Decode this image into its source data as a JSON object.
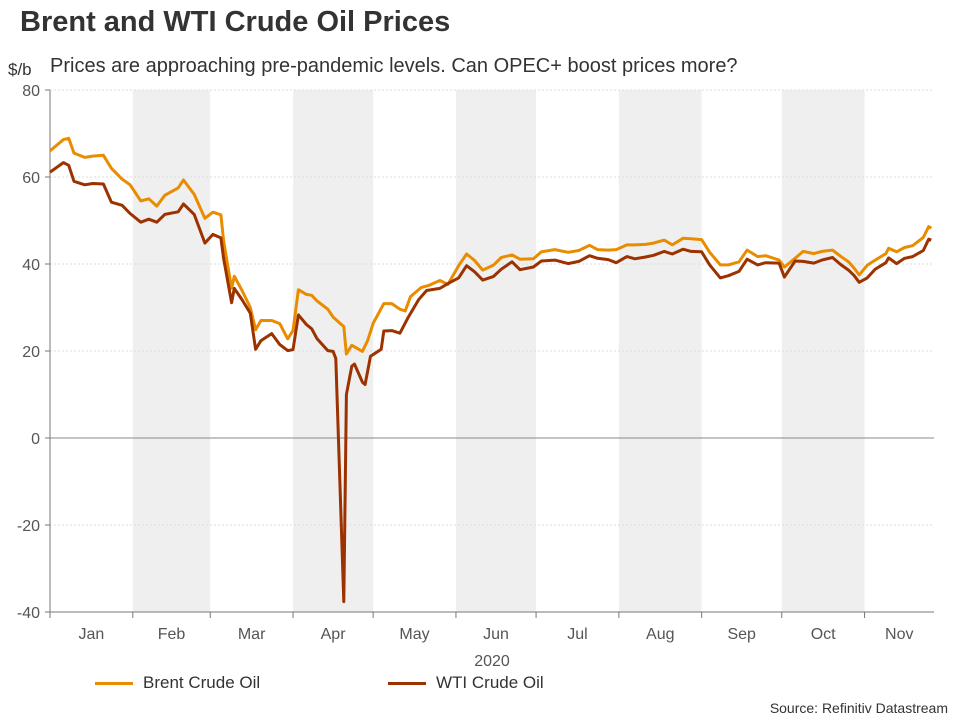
{
  "title": "Brent and WTI Crude Oil Prices",
  "subtitle": "Prices are approaching pre-pandemic levels. Can OPEC+ boost prices more?",
  "source": "Source: Refinitiv Datastream",
  "chart_data": {
    "type": "line",
    "ylabel": "$/b",
    "xlabel": "2020",
    "ylim": [
      -40,
      80
    ],
    "yticks": [
      -40,
      -20,
      0,
      20,
      40,
      60,
      80
    ],
    "xlim": [
      "2020-01-01",
      "2020-11-27"
    ],
    "xticks": [
      "Jan",
      "Feb",
      "Mar",
      "Apr",
      "May",
      "Jun",
      "Jul",
      "Aug",
      "Sep",
      "Oct",
      "Nov"
    ],
    "shaded_months": [
      "Feb",
      "Apr",
      "Jun",
      "Aug",
      "Oct"
    ],
    "grid": true,
    "legend": "bottom",
    "series": [
      {
        "name": "Brent Crude Oil",
        "color": "#ea8c00",
        "points": [
          [
            "2020-01-01",
            66
          ],
          [
            "2020-01-06",
            68.6
          ],
          [
            "2020-01-08",
            68.9
          ],
          [
            "2020-01-10",
            65.5
          ],
          [
            "2020-01-14",
            64.5
          ],
          [
            "2020-01-17",
            64.8
          ],
          [
            "2020-01-21",
            65
          ],
          [
            "2020-01-24",
            62
          ],
          [
            "2020-01-28",
            59.5
          ],
          [
            "2020-01-31",
            58.2
          ],
          [
            "2020-02-04",
            54.5
          ],
          [
            "2020-02-07",
            55
          ],
          [
            "2020-02-10",
            53.3
          ],
          [
            "2020-02-13",
            55.8
          ],
          [
            "2020-02-18",
            57.5
          ],
          [
            "2020-02-20",
            59.3
          ],
          [
            "2020-02-24",
            56
          ],
          [
            "2020-02-28",
            50.5
          ],
          [
            "2020-03-02",
            51.9
          ],
          [
            "2020-03-05",
            51.3
          ],
          [
            "2020-03-06",
            45.3
          ],
          [
            "2020-03-09",
            34.4
          ],
          [
            "2020-03-10",
            37.2
          ],
          [
            "2020-03-13",
            33.8
          ],
          [
            "2020-03-16",
            30
          ],
          [
            "2020-03-18",
            24.9
          ],
          [
            "2020-03-20",
            27
          ],
          [
            "2020-03-24",
            27
          ],
          [
            "2020-03-27",
            26.3
          ],
          [
            "2020-03-30",
            22.8
          ],
          [
            "2020-04-01",
            24.7
          ],
          [
            "2020-04-03",
            34.1
          ],
          [
            "2020-04-06",
            33
          ],
          [
            "2020-04-08",
            32.8
          ],
          [
            "2020-04-10",
            31.5
          ],
          [
            "2020-04-14",
            29.6
          ],
          [
            "2020-04-16",
            27.8
          ],
          [
            "2020-04-20",
            25.6
          ],
          [
            "2020-04-21",
            19.3
          ],
          [
            "2020-04-23",
            21.3
          ],
          [
            "2020-04-27",
            19.9
          ],
          [
            "2020-04-29",
            22.5
          ],
          [
            "2020-05-01",
            26.4
          ],
          [
            "2020-05-05",
            30.9
          ],
          [
            "2020-05-08",
            30.9
          ],
          [
            "2020-05-11",
            29.6
          ],
          [
            "2020-05-13",
            29.2
          ],
          [
            "2020-05-15",
            32.5
          ],
          [
            "2020-05-19",
            34.6
          ],
          [
            "2020-05-22",
            35.1
          ],
          [
            "2020-05-26",
            36.2
          ],
          [
            "2020-05-29",
            35.3
          ],
          [
            "2020-06-02",
            39.6
          ],
          [
            "2020-06-05",
            42.3
          ],
          [
            "2020-06-08",
            40.8
          ],
          [
            "2020-06-11",
            38.6
          ],
          [
            "2020-06-15",
            39.7
          ],
          [
            "2020-06-18",
            41.5
          ],
          [
            "2020-06-22",
            42.1
          ],
          [
            "2020-06-25",
            41.1
          ],
          [
            "2020-06-30",
            41.2
          ],
          [
            "2020-07-03",
            42.8
          ],
          [
            "2020-07-08",
            43.3
          ],
          [
            "2020-07-13",
            42.7
          ],
          [
            "2020-07-17",
            43.1
          ],
          [
            "2020-07-21",
            44.3
          ],
          [
            "2020-07-24",
            43.3
          ],
          [
            "2020-07-28",
            43.2
          ],
          [
            "2020-07-31",
            43.3
          ],
          [
            "2020-08-04",
            44.4
          ],
          [
            "2020-08-07",
            44.4
          ],
          [
            "2020-08-11",
            44.5
          ],
          [
            "2020-08-14",
            44.8
          ],
          [
            "2020-08-18",
            45.5
          ],
          [
            "2020-08-21",
            44.4
          ],
          [
            "2020-08-25",
            45.9
          ],
          [
            "2020-08-28",
            45.8
          ],
          [
            "2020-09-01",
            45.6
          ],
          [
            "2020-09-04",
            42.7
          ],
          [
            "2020-09-08",
            39.8
          ],
          [
            "2020-09-11",
            39.8
          ],
          [
            "2020-09-15",
            40.5
          ],
          [
            "2020-09-18",
            43.2
          ],
          [
            "2020-09-22",
            41.7
          ],
          [
            "2020-09-25",
            41.9
          ],
          [
            "2020-09-30",
            40.9
          ],
          [
            "2020-10-02",
            39.3
          ],
          [
            "2020-10-06",
            41.3
          ],
          [
            "2020-10-09",
            42.9
          ],
          [
            "2020-10-13",
            42.4
          ],
          [
            "2020-10-16",
            42.9
          ],
          [
            "2020-10-20",
            43.2
          ],
          [
            "2020-10-23",
            41.8
          ],
          [
            "2020-10-26",
            40.5
          ],
          [
            "2020-10-28",
            39.1
          ],
          [
            "2020-10-30",
            37.5
          ],
          [
            "2020-11-02",
            39.7
          ],
          [
            "2020-11-05",
            40.9
          ],
          [
            "2020-11-09",
            42.4
          ],
          [
            "2020-11-10",
            43.6
          ],
          [
            "2020-11-13",
            42.8
          ],
          [
            "2020-11-16",
            43.8
          ],
          [
            "2020-11-19",
            44.2
          ],
          [
            "2020-11-23",
            46.1
          ],
          [
            "2020-11-25",
            48.6
          ],
          [
            "2020-11-26",
            48.2
          ]
        ]
      },
      {
        "name": "WTI Crude Oil",
        "color": "#9b3200",
        "points": [
          [
            "2020-01-01",
            61.1
          ],
          [
            "2020-01-06",
            63.3
          ],
          [
            "2020-01-08",
            62.7
          ],
          [
            "2020-01-10",
            59
          ],
          [
            "2020-01-14",
            58.2
          ],
          [
            "2020-01-17",
            58.5
          ],
          [
            "2020-01-21",
            58.4
          ],
          [
            "2020-01-24",
            54.2
          ],
          [
            "2020-01-28",
            53.5
          ],
          [
            "2020-01-31",
            51.6
          ],
          [
            "2020-02-04",
            49.6
          ],
          [
            "2020-02-07",
            50.3
          ],
          [
            "2020-02-10",
            49.6
          ],
          [
            "2020-02-13",
            51.4
          ],
          [
            "2020-02-18",
            52
          ],
          [
            "2020-02-20",
            53.8
          ],
          [
            "2020-02-24",
            51.4
          ],
          [
            "2020-02-28",
            44.8
          ],
          [
            "2020-03-02",
            46.8
          ],
          [
            "2020-03-05",
            46
          ],
          [
            "2020-03-06",
            41.3
          ],
          [
            "2020-03-09",
            31.1
          ],
          [
            "2020-03-10",
            34.4
          ],
          [
            "2020-03-13",
            31.7
          ],
          [
            "2020-03-16",
            28.7
          ],
          [
            "2020-03-18",
            20.4
          ],
          [
            "2020-03-20",
            22.4
          ],
          [
            "2020-03-24",
            24
          ],
          [
            "2020-03-27",
            21.5
          ],
          [
            "2020-03-30",
            20.1
          ],
          [
            "2020-04-01",
            20.3
          ],
          [
            "2020-04-03",
            28.3
          ],
          [
            "2020-04-06",
            26.1
          ],
          [
            "2020-04-08",
            25.1
          ],
          [
            "2020-04-10",
            22.8
          ],
          [
            "2020-04-14",
            20.1
          ],
          [
            "2020-04-16",
            19.9
          ],
          [
            "2020-04-17",
            18.3
          ],
          [
            "2020-04-20",
            -37.6
          ],
          [
            "2020-04-21",
            10
          ],
          [
            "2020-04-23",
            16.5
          ],
          [
            "2020-04-24",
            17
          ],
          [
            "2020-04-27",
            12.8
          ],
          [
            "2020-04-28",
            12.3
          ],
          [
            "2020-04-30",
            18.8
          ],
          [
            "2020-05-04",
            20.4
          ],
          [
            "2020-05-05",
            24.6
          ],
          [
            "2020-05-08",
            24.7
          ],
          [
            "2020-05-11",
            24.1
          ],
          [
            "2020-05-14",
            27.6
          ],
          [
            "2020-05-18",
            31.8
          ],
          [
            "2020-05-21",
            33.9
          ],
          [
            "2020-05-26",
            34.4
          ],
          [
            "2020-05-29",
            35.5
          ],
          [
            "2020-06-02",
            36.8
          ],
          [
            "2020-06-05",
            39.6
          ],
          [
            "2020-06-08",
            38.2
          ],
          [
            "2020-06-11",
            36.3
          ],
          [
            "2020-06-15",
            37.1
          ],
          [
            "2020-06-18",
            38.8
          ],
          [
            "2020-06-22",
            40.5
          ],
          [
            "2020-06-25",
            38.7
          ],
          [
            "2020-06-30",
            39.3
          ],
          [
            "2020-07-03",
            40.7
          ],
          [
            "2020-07-08",
            40.9
          ],
          [
            "2020-07-13",
            40.1
          ],
          [
            "2020-07-17",
            40.6
          ],
          [
            "2020-07-21",
            41.9
          ],
          [
            "2020-07-24",
            41.3
          ],
          [
            "2020-07-28",
            41
          ],
          [
            "2020-07-31",
            40.3
          ],
          [
            "2020-08-04",
            41.7
          ],
          [
            "2020-08-07",
            41.2
          ],
          [
            "2020-08-11",
            41.6
          ],
          [
            "2020-08-14",
            42
          ],
          [
            "2020-08-18",
            42.9
          ],
          [
            "2020-08-21",
            42.3
          ],
          [
            "2020-08-25",
            43.4
          ],
          [
            "2020-08-28",
            42.9
          ],
          [
            "2020-09-01",
            42.8
          ],
          [
            "2020-09-04",
            39.8
          ],
          [
            "2020-09-08",
            36.8
          ],
          [
            "2020-09-11",
            37.3
          ],
          [
            "2020-09-15",
            38.3
          ],
          [
            "2020-09-18",
            41.1
          ],
          [
            "2020-09-22",
            39.8
          ],
          [
            "2020-09-25",
            40.3
          ],
          [
            "2020-09-30",
            40.2
          ],
          [
            "2020-10-02",
            37
          ],
          [
            "2020-10-06",
            40.7
          ],
          [
            "2020-10-09",
            40.6
          ],
          [
            "2020-10-13",
            40.2
          ],
          [
            "2020-10-16",
            40.9
          ],
          [
            "2020-10-20",
            41.5
          ],
          [
            "2020-10-23",
            39.9
          ],
          [
            "2020-10-26",
            38.6
          ],
          [
            "2020-10-28",
            37.4
          ],
          [
            "2020-10-30",
            35.8
          ],
          [
            "2020-11-02",
            36.8
          ],
          [
            "2020-11-05",
            38.8
          ],
          [
            "2020-11-09",
            40.3
          ],
          [
            "2020-11-10",
            41.4
          ],
          [
            "2020-11-13",
            40.1
          ],
          [
            "2020-11-16",
            41.3
          ],
          [
            "2020-11-19",
            41.7
          ],
          [
            "2020-11-23",
            43.1
          ],
          [
            "2020-11-25",
            45.7
          ],
          [
            "2020-11-26",
            45.5
          ]
        ]
      }
    ]
  }
}
